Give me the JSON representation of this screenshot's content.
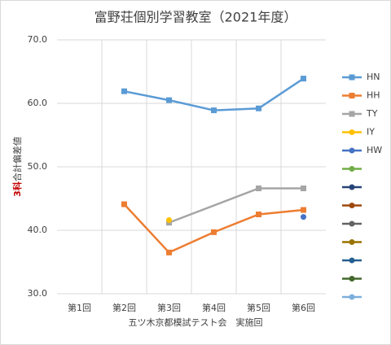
{
  "chart_data": {
    "type": "line",
    "title": "富野荘個別学習教室（2021年度）",
    "ylabel": [
      "3科",
      "合計偏差値"
    ],
    "ylabel_colors": [
      "#c00000",
      "#404040"
    ],
    "xlabel": "五ツ木京都模試テスト会　実施回",
    "categories": [
      "第1回",
      "第2回",
      "第3回",
      "第4回",
      "第5回",
      "第6回"
    ],
    "ylim": [
      30,
      70
    ],
    "yticks": [
      {
        "value": 30,
        "label": "30.0"
      },
      {
        "value": 40,
        "label": "40.0"
      },
      {
        "value": 50,
        "label": "50.0"
      },
      {
        "value": 60,
        "label": "60.0"
      },
      {
        "value": 70,
        "label": "70.0"
      }
    ],
    "grid": true,
    "legend": "right",
    "connect_gaps": true,
    "series": [
      {
        "name": "HN",
        "color": "#5b9bd5",
        "marker": "square",
        "values": [
          null,
          61.9,
          60.5,
          58.9,
          59.2,
          63.9
        ]
      },
      {
        "name": "HH",
        "color": "#ed7d31",
        "marker": "square",
        "values": [
          null,
          44.1,
          36.5,
          39.7,
          42.5,
          43.2
        ]
      },
      {
        "name": "TY",
        "color": "#a5a5a5",
        "marker": "square",
        "values": [
          null,
          null,
          41.2,
          null,
          46.6,
          46.6
        ]
      },
      {
        "name": "IY",
        "color": "#ffc000",
        "marker": "circle",
        "values": [
          null,
          null,
          41.6,
          null,
          null,
          null
        ]
      },
      {
        "name": "HW",
        "color": "#4472c4",
        "marker": "circle",
        "values": [
          null,
          null,
          null,
          null,
          null,
          42.1
        ]
      },
      {
        "color": "#70ad47",
        "marker": "circle",
        "values": [
          null,
          null,
          null,
          null,
          null,
          null
        ]
      },
      {
        "color": "#264478",
        "marker": "circle",
        "values": [
          null,
          null,
          null,
          null,
          null,
          null
        ]
      },
      {
        "color": "#9e480e",
        "marker": "circle",
        "values": [
          null,
          null,
          null,
          null,
          null,
          null
        ]
      },
      {
        "color": "#636363",
        "marker": "circle",
        "values": [
          null,
          null,
          null,
          null,
          null,
          null
        ]
      },
      {
        "color": "#997300",
        "marker": "circle",
        "values": [
          null,
          null,
          null,
          null,
          null,
          null
        ]
      },
      {
        "color": "#255e91",
        "marker": "circle",
        "values": [
          null,
          null,
          null,
          null,
          null,
          null
        ]
      },
      {
        "color": "#43682b",
        "marker": "circle",
        "values": [
          null,
          null,
          null,
          null,
          null,
          null
        ]
      },
      {
        "color": "#7cafdd",
        "marker": "circle",
        "values": [
          null,
          null,
          null,
          null,
          null,
          null
        ]
      }
    ]
  }
}
